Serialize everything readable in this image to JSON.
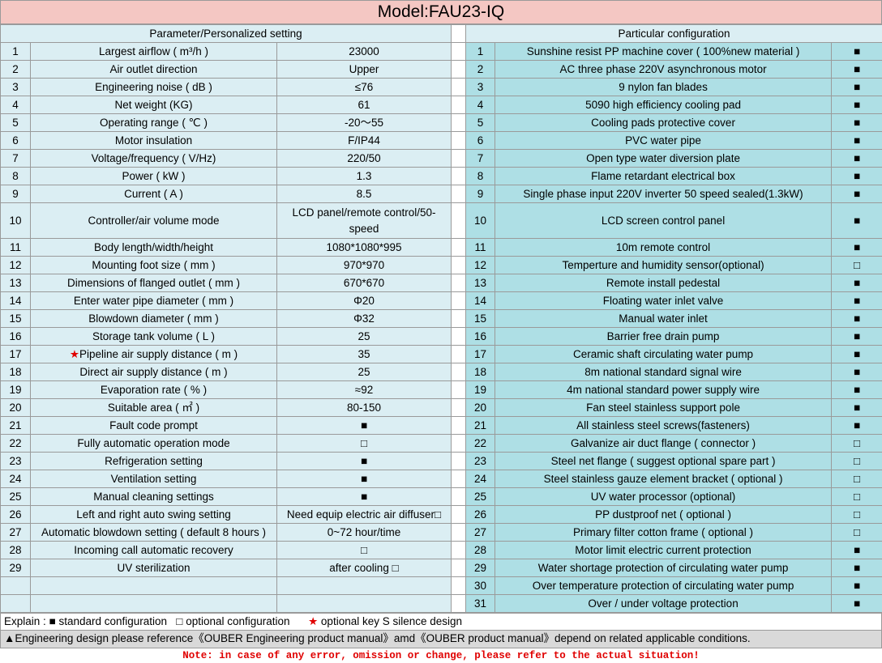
{
  "title": "Model:FAU23-IQ",
  "left_header": "Parameter/Personalized setting",
  "right_header": "Particular configuration",
  "left_rows": [
    {
      "no": "1",
      "name": "Largest airflow ( m³/h )",
      "value": "23000"
    },
    {
      "no": "2",
      "name": "Air outlet direction",
      "value": "Upper"
    },
    {
      "no": "3",
      "name": "Engineering noise ( dB )",
      "value": "≤76"
    },
    {
      "no": "4",
      "name": "Net weight (KG)",
      "value": "61"
    },
    {
      "no": "5",
      "name": "Operating range ( ℃ )",
      "value": "-20～55"
    },
    {
      "no": "6",
      "name": "Motor insulation",
      "value": "F/IP44"
    },
    {
      "no": "7",
      "name": "Voltage/frequency ( V/Hz)",
      "value": "220/50"
    },
    {
      "no": "8",
      "name": "Power ( kW )",
      "value": "1.3"
    },
    {
      "no": "9",
      "name": "Current ( A )",
      "value": "8.5"
    },
    {
      "no": "10",
      "name": "Controller/air volume mode",
      "value": "LCD panel/remote control/50-speed"
    },
    {
      "no": "11",
      "name": "Body length/width/height",
      "value": "1080*1080*995"
    },
    {
      "no": "12",
      "name": "Mounting foot size ( mm )",
      "value": "970*970"
    },
    {
      "no": "13",
      "name": "Dimensions of flanged outlet ( mm )",
      "value": "670*670"
    },
    {
      "no": "14",
      "name": "Enter water pipe diameter ( mm )",
      "value": "Φ20"
    },
    {
      "no": "15",
      "name": "Blowdown diameter ( mm )",
      "value": "Φ32"
    },
    {
      "no": "16",
      "name": "Storage tank volume ( L )",
      "value": "25"
    },
    {
      "no": "17",
      "name": "Pipeline air supply distance ( m )",
      "value": "35",
      "star": "★"
    },
    {
      "no": "18",
      "name": "Direct air supply distance ( m )",
      "value": "25"
    },
    {
      "no": "19",
      "name": "Evaporation rate ( % )",
      "value": "≈92"
    },
    {
      "no": "20",
      "name": "Suitable area ( ㎡ )",
      "value": "80-150"
    },
    {
      "no": "21",
      "name": "Fault code prompt",
      "value": "■"
    },
    {
      "no": "22",
      "name": "Fully automatic operation mode",
      "value": "□"
    },
    {
      "no": "23",
      "name": "Refrigeration setting",
      "value": "■"
    },
    {
      "no": "24",
      "name": "Ventilation setting",
      "value": "■"
    },
    {
      "no": "25",
      "name": "Manual cleaning settings",
      "value": "■"
    },
    {
      "no": "26",
      "name": "Left and right auto swing setting",
      "value": "Need equip electric air diffuser□"
    },
    {
      "no": "27",
      "name": "Automatic blowdown setting ( default 8 hours )",
      "value": "0~72 hour/time"
    },
    {
      "no": "28",
      "name": "Incoming call automatic recovery",
      "value": "□"
    },
    {
      "no": "29",
      "name": "UV sterilization",
      "value": "after cooling □"
    },
    {
      "no": "",
      "name": "",
      "value": ""
    },
    {
      "no": "",
      "name": "",
      "value": ""
    }
  ],
  "right_rows": [
    {
      "no": "1",
      "name": "Sunshine resist PP machine cover ( 100%new material )",
      "sym": "■"
    },
    {
      "no": "2",
      "name": "AC three phase 220V asynchronous motor",
      "sym": "■"
    },
    {
      "no": "3",
      "name": "9 nylon fan blades",
      "sym": "■"
    },
    {
      "no": "4",
      "name": "5090 high efficiency cooling pad",
      "sym": "■"
    },
    {
      "no": "5",
      "name": "Cooling pads protective cover",
      "sym": "■"
    },
    {
      "no": "6",
      "name": "PVC water pipe",
      "sym": "■"
    },
    {
      "no": "7",
      "name": "Open type water diversion plate",
      "sym": "■"
    },
    {
      "no": "8",
      "name": "Flame retardant electrical box",
      "sym": "■"
    },
    {
      "no": "9",
      "name": "Single phase input 220V inverter 50 speed sealed(1.3kW)",
      "sym": "■"
    },
    {
      "no": "10",
      "name": "LCD screen control panel",
      "sym": "■"
    },
    {
      "no": "11",
      "name": "10m remote control",
      "sym": "■"
    },
    {
      "no": "12",
      "name": "Temperture and humidity sensor(optional)",
      "sym": "□"
    },
    {
      "no": "13",
      "name": "Remote install pedestal",
      "sym": "■"
    },
    {
      "no": "14",
      "name": "Floating water inlet valve",
      "sym": "■"
    },
    {
      "no": "15",
      "name": "Manual water inlet",
      "sym": "■"
    },
    {
      "no": "16",
      "name": "Barrier free drain pump",
      "sym": "■"
    },
    {
      "no": "17",
      "name": "Ceramic shaft circulating water pump",
      "sym": "■"
    },
    {
      "no": "18",
      "name": "8m national standard signal wire",
      "sym": "■"
    },
    {
      "no": "19",
      "name": "4m national standard power supply wire",
      "sym": "■"
    },
    {
      "no": "20",
      "name": "Fan steel stainless support pole",
      "sym": "■"
    },
    {
      "no": "21",
      "name": "All stainless steel screws(fasteners)",
      "sym": "■"
    },
    {
      "no": "22",
      "name": "Galvanize air duct flange ( connector )",
      "sym": "□"
    },
    {
      "no": "23",
      "name": "Steel net flange ( suggest optional spare part )",
      "sym": "□"
    },
    {
      "no": "24",
      "name": "Steel stainless gauze element bracket ( optional )",
      "sym": "□"
    },
    {
      "no": "25",
      "name": "UV water processor (optional)",
      "sym": "□"
    },
    {
      "no": "26",
      "name": "PP dustproof net ( optional )",
      "sym": "□"
    },
    {
      "no": "27",
      "name": "Primary filter cotton frame ( optional )",
      "sym": "□"
    },
    {
      "no": "28",
      "name": "Motor limit electric current protection",
      "sym": "■"
    },
    {
      "no": "29",
      "name": "Water shortage protection of circulating water pump",
      "sym": "■"
    },
    {
      "no": "30",
      "name": "Over temperature protection of circulating water pump",
      "sym": "■"
    },
    {
      "no": "31",
      "name": "Over / under voltage protection",
      "sym": "■"
    }
  ],
  "explain": {
    "prefix": "Explain : ",
    "std_sym": "■",
    "std_text": " standard configuration",
    "opt_sym": "□",
    "opt_text": " optional configuration",
    "star_sym": "★",
    "star_text": " optional key S silence design"
  },
  "engineering_note": "▲Engineering design please reference《OUBER Engineering product manual》amd《OUBER product manual》depend on related applicable conditions.",
  "bottom_note": "Note: in case of any error, omission or change, please refer to the actual situation!",
  "colors": {
    "header_bg": "#f4c7c3",
    "left_bg": "#dbeef3",
    "right_bg": "#aedfe5",
    "note_red": "#e00000"
  }
}
